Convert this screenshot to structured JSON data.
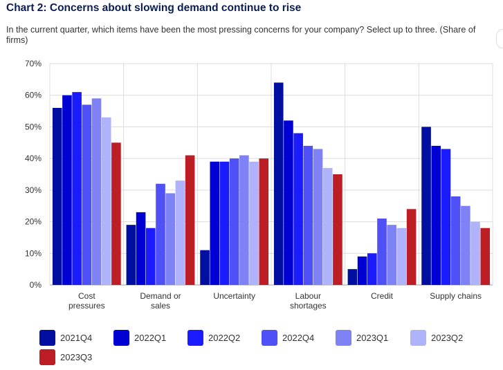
{
  "title": "Chart 2: Concerns about slowing demand continue to rise",
  "subtitle": "In the current quarter, which items have been the most pressing concerns for your company? Select up to three. (Share of firms)",
  "chart_data": {
    "type": "bar",
    "title": "Chart 2: Concerns about slowing demand continue to rise",
    "xlabel": "",
    "ylabel": "",
    "ylim": [
      0,
      70
    ],
    "ytick_labels": [
      "0%",
      "10%",
      "20%",
      "30%",
      "40%",
      "50%",
      "60%",
      "70%"
    ],
    "grid": true,
    "legend_position": "bottom",
    "categories": [
      [
        "Cost",
        "pressures"
      ],
      [
        "Demand or",
        "sales"
      ],
      [
        "Uncertainty"
      ],
      [
        "Labour",
        "shortages"
      ],
      [
        "Credit"
      ],
      [
        "Supply chains"
      ]
    ],
    "series": [
      {
        "name": "2021Q4",
        "color": "#000f9f",
        "values": [
          56,
          19,
          11,
          64,
          5,
          50
        ]
      },
      {
        "name": "2022Q1",
        "color": "#0000d4",
        "values": [
          60,
          23,
          39,
          52,
          9,
          44
        ]
      },
      {
        "name": "2022Q2",
        "color": "#1a1cff",
        "values": [
          61,
          18,
          39,
          48,
          10,
          43
        ]
      },
      {
        "name": "2022Q4",
        "color": "#5050f7",
        "values": [
          57,
          32,
          40,
          44,
          21,
          28
        ]
      },
      {
        "name": "2023Q1",
        "color": "#7f82f5",
        "values": [
          59,
          29,
          41,
          43,
          19,
          25
        ]
      },
      {
        "name": "2023Q2",
        "color": "#afb3fb",
        "values": [
          53,
          33,
          39,
          37,
          18,
          20
        ]
      },
      {
        "name": "2023Q3",
        "color": "#bd1d24",
        "values": [
          45,
          41,
          40,
          35,
          24,
          18
        ]
      }
    ]
  }
}
